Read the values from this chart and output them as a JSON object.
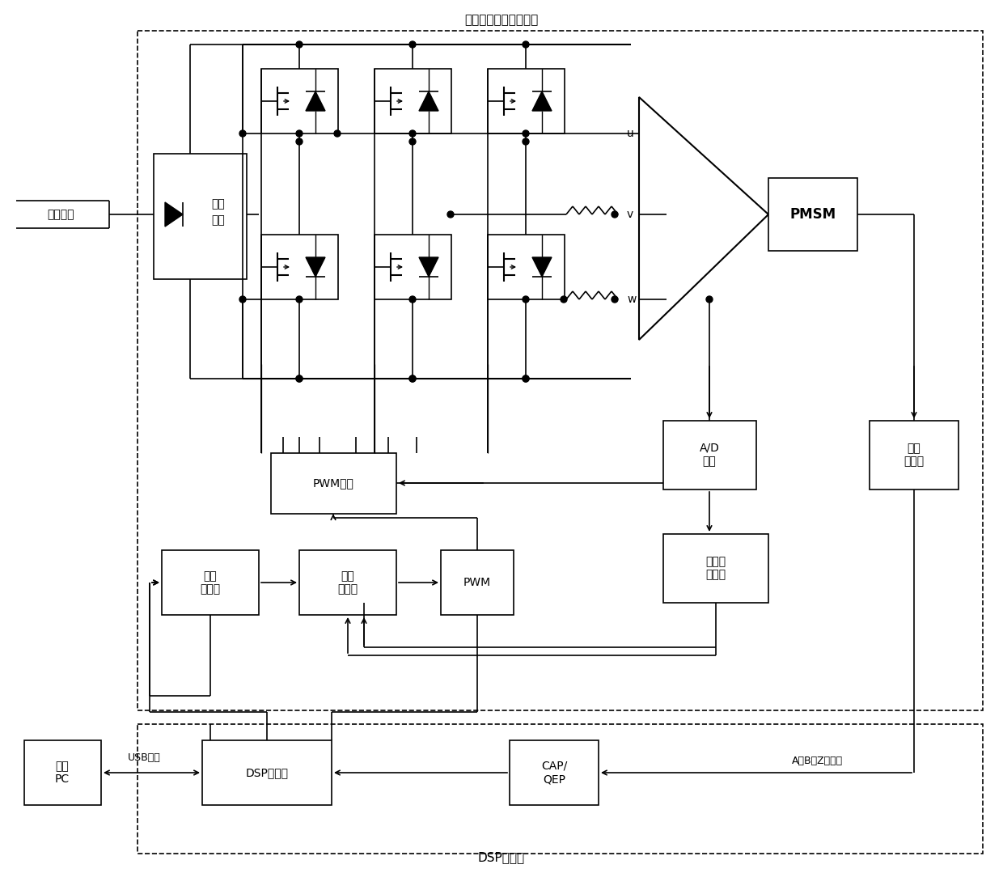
{
  "title_top": "交流永磁同步电机驱动",
  "title_bottom": "DSP控制板",
  "labels": {
    "single_phase": "单相电源",
    "rectifier": "整流\n电路",
    "pwm_drive": "PWM驱动",
    "speed_ctrl": "速度\n控制器",
    "current_ctrl": "电流\n控制器",
    "pwm": "PWM",
    "ad_convert": "A/D\n变换",
    "optical_encoder": "光电\n编码器",
    "current_signal": "电流信\n号处理",
    "dsp": "DSP处理器",
    "cap_qep": "CAP/\nQEP",
    "upper_pc": "上位\nPC",
    "usb": "USB接口",
    "pmsm": "PMSM",
    "u": "u",
    "v": "v",
    "w": "w",
    "abz": "A、B、Z项信号"
  }
}
